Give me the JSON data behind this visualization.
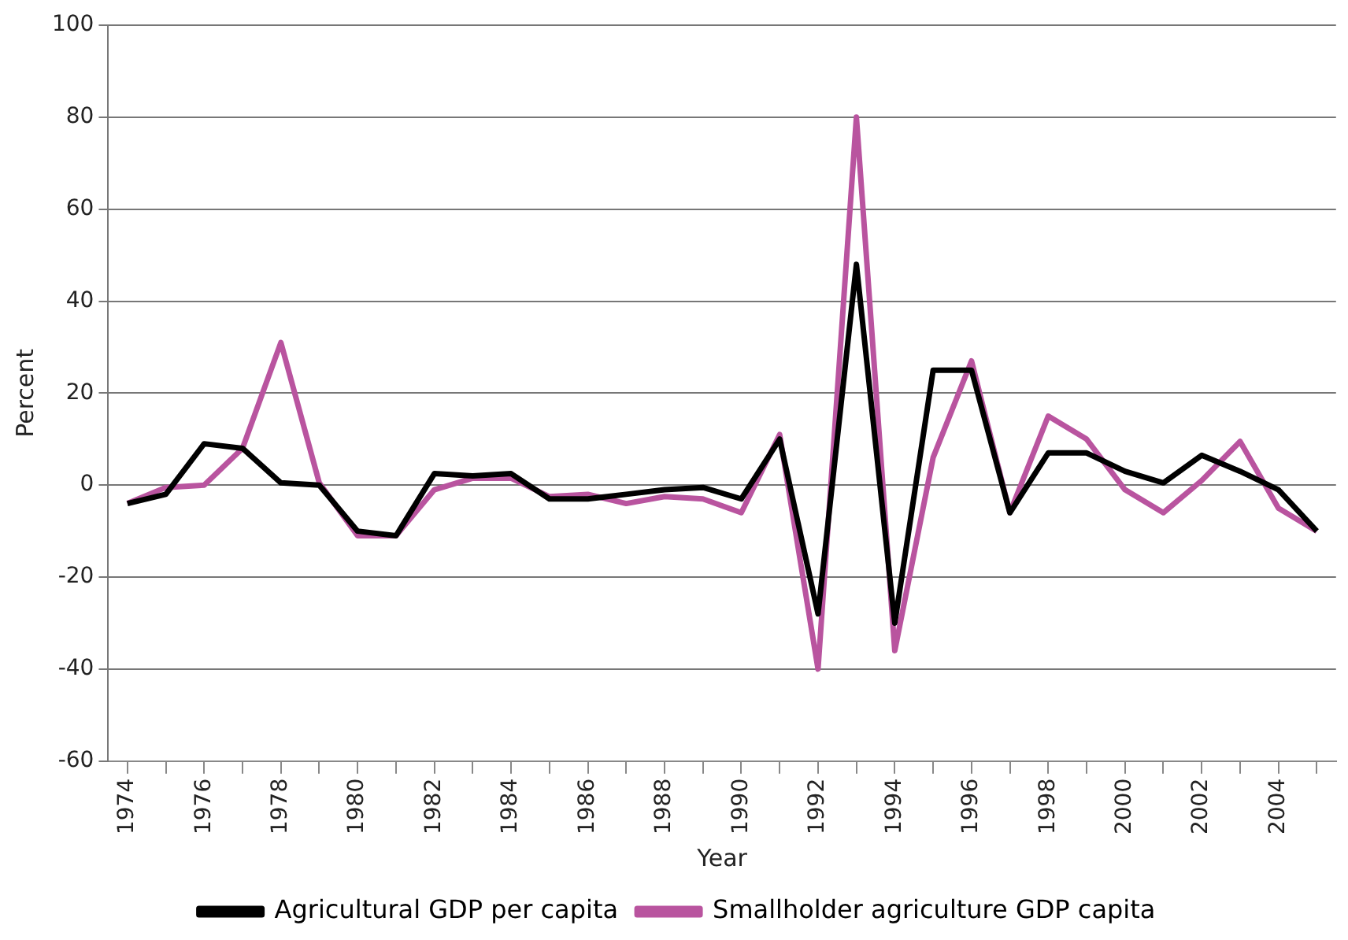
{
  "chart_data": {
    "type": "line",
    "xlabel": "Year",
    "ylabel": "Percent",
    "categories": [
      "1974",
      null,
      "1976",
      null,
      "1978",
      null,
      "1980",
      null,
      "1982",
      null,
      "1984",
      null,
      "1986",
      null,
      "1988",
      null,
      "1990",
      null,
      "1992",
      null,
      "1994",
      null,
      "1996",
      null,
      "1998",
      null,
      "2000",
      null,
      "2002",
      null,
      "2004",
      null
    ],
    "series": [
      {
        "name": "Agricultural GDP per capita",
        "color": "#000000",
        "values": [
          -4,
          -2,
          9,
          8,
          0.5,
          0,
          -10,
          -11,
          2.5,
          2,
          2.5,
          -3,
          -3,
          -2,
          -1,
          -0.5,
          -3,
          10,
          -28,
          48,
          -30,
          25,
          25,
          -6,
          7,
          7,
          3,
          0.5,
          6.5,
          3,
          -1,
          -10
        ]
      },
      {
        "name": "Smallholder agriculture GDP capita",
        "color": "#b9549f",
        "values": [
          -4,
          -0.5,
          0,
          8,
          31,
          0.5,
          -11,
          -11,
          -1,
          1.5,
          1.5,
          -2.5,
          -2,
          -4,
          -2.5,
          -3,
          -6,
          11,
          -40,
          80,
          -36,
          6,
          27,
          -6,
          15,
          10,
          -1,
          -6,
          1,
          9.5,
          -5,
          -10
        ]
      }
    ],
    "ylim": [
      -60,
      100
    ],
    "yticks": [
      -60,
      -40,
      -20,
      0,
      20,
      40,
      60,
      80,
      100
    ],
    "grid": "y",
    "legend": "bottom",
    "marker": "none",
    "line_style": "solid"
  }
}
